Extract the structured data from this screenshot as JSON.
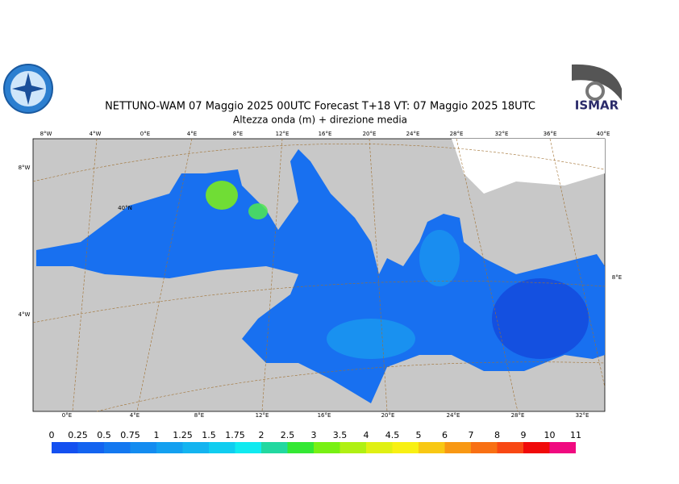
{
  "header": {
    "title": "NETTUNO-WAM  07   Maggio  2025 00UTC Forecast T+18 VT: 07   Maggio  2025 18UTC",
    "subtitle": "Altezza onda (m) + direzione media"
  },
  "logos": {
    "right_text": "ISMAR"
  },
  "map": {
    "top_labels": [
      "8°W",
      "4°W",
      "0°E",
      "4°E",
      "8°E",
      "12°E",
      "16°E",
      "20°E",
      "24°E",
      "28°E",
      "32°E",
      "36°E",
      "40°E"
    ],
    "bottom_labels": [
      "0°E",
      "4°E",
      "8°E",
      "12°E",
      "16°E",
      "20°E",
      "24°E",
      "28°E",
      "32°E"
    ],
    "left_labels": [
      "8°W",
      "4°W"
    ],
    "inner_labels": [
      "40°N"
    ],
    "right_labels": [
      "8°E"
    ]
  },
  "colorbar": {
    "labels": [
      0,
      0.25,
      0.5,
      0.75,
      1,
      1.25,
      1.5,
      1.75,
      2,
      2.5,
      3,
      3.5,
      4,
      4.5,
      5,
      6,
      7,
      8,
      9,
      10,
      11
    ],
    "colors": [
      "#1450f0",
      "#1464f0",
      "#1478f0",
      "#148cf0",
      "#14a0f0",
      "#14b4f0",
      "#10cdf0",
      "#10eaf0",
      "#22d8a0",
      "#34e834",
      "#78f014",
      "#b0f014",
      "#e0f014",
      "#f8f014",
      "#f8c814",
      "#f89814",
      "#f87014",
      "#f84814",
      "#f00a0a",
      "#f00a80",
      "#f014e0"
    ]
  }
}
